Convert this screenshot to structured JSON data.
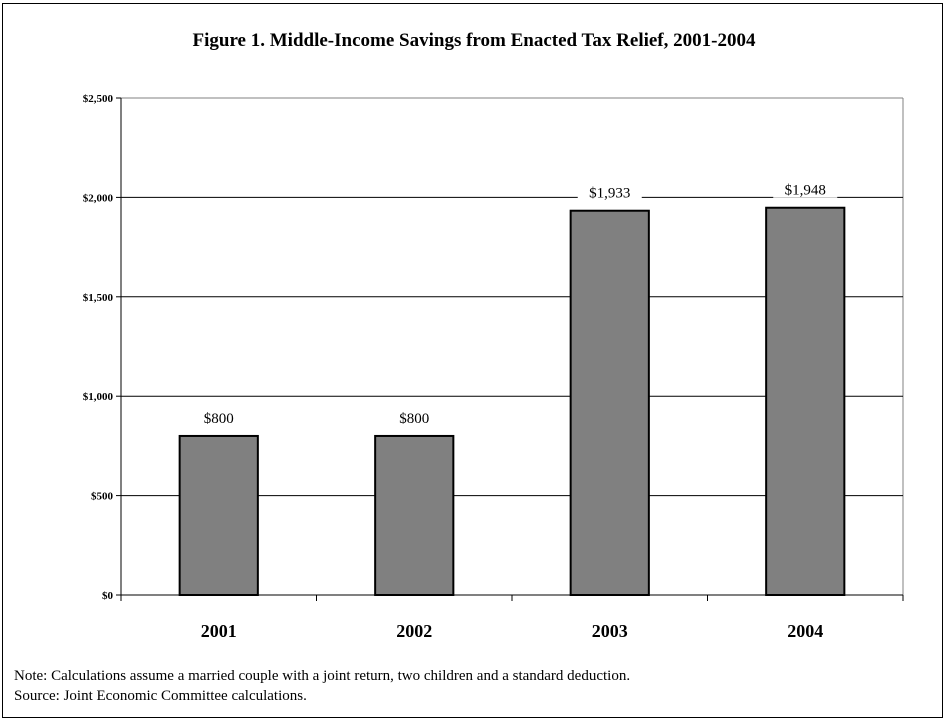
{
  "figure": {
    "title": "Figure 1. Middle-Income Savings from Enacted Tax Relief, 2001-2004",
    "note": "Note: Calculations assume a married couple with a joint return, two children and a standard deduction.",
    "source": "Source: Joint Economic Committee calculations."
  },
  "chart_data": {
    "type": "bar",
    "title": "Figure 1. Middle-Income Savings from Enacted Tax Relief, 2001-2004",
    "xlabel": "",
    "ylabel": "",
    "categories": [
      "2001",
      "2002",
      "2003",
      "2004"
    ],
    "values": [
      800,
      800,
      1933,
      1948
    ],
    "value_labels": [
      "$800",
      "$800",
      "$1,933",
      "$1,948"
    ],
    "ylim": [
      0,
      2500
    ],
    "yticks": [
      0,
      500,
      1000,
      1500,
      2000,
      2500
    ],
    "ytick_labels": [
      "$0",
      "$500",
      "$1,000",
      "$1,500",
      "$2,000",
      "$2,500"
    ],
    "grid": true,
    "bar_color": "#808080",
    "legend": "none"
  }
}
